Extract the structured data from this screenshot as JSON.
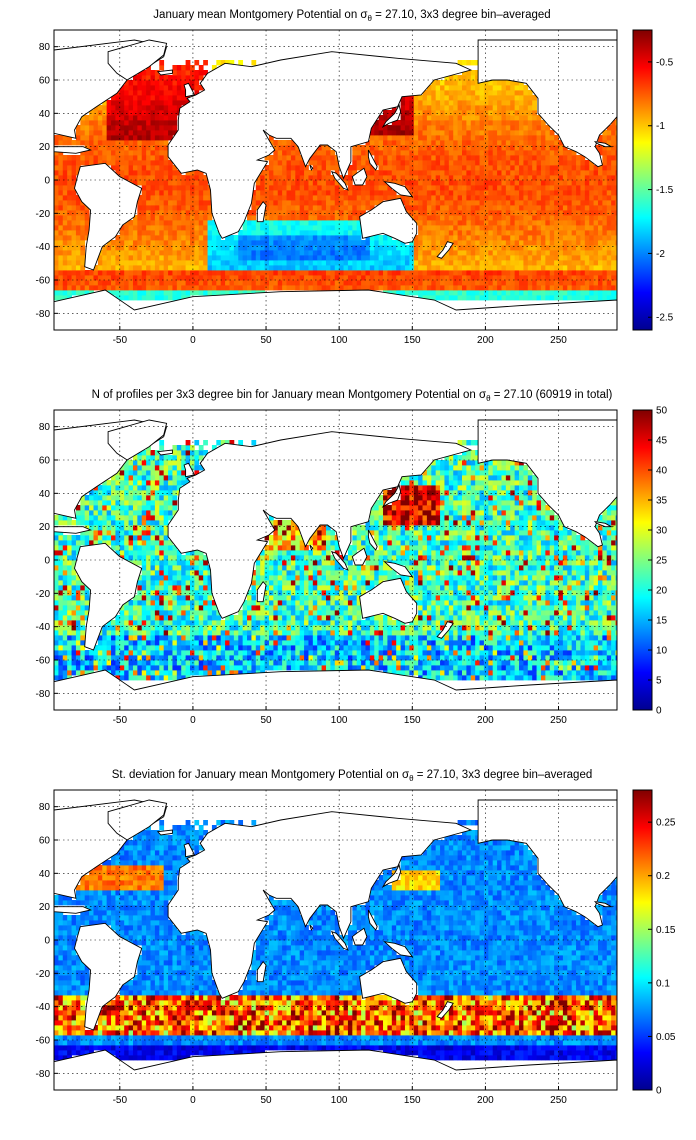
{
  "chart_data": [
    {
      "type": "heatmap",
      "title_parts": [
        "January mean Montgomery Potential on ",
        "σ",
        "θ",
        " = 27.10, 3x3 degree bin–averaged"
      ],
      "x_ticks": [
        "-50",
        "0",
        "50",
        "100",
        "150",
        "200",
        "250"
      ],
      "y_ticks": [
        "80",
        "60",
        "40",
        "20",
        "0",
        "-20",
        "-40",
        "-60",
        "-80"
      ],
      "xlim": [
        -95,
        290
      ],
      "ylim": [
        -90,
        90
      ],
      "colorbar_ticks": [
        "-0.5",
        "-1",
        "-1.5",
        "-2",
        "-2.5"
      ],
      "colorbar_range": [
        -2.6,
        -0.25
      ],
      "colormap": "jet",
      "grid": "dotted"
    },
    {
      "type": "heatmap",
      "title_parts": [
        "N of profiles per 3x3 degree bin for January mean Montgomery Potential on ",
        "σ",
        "θ",
        " = 27.10 (60919 in total)"
      ],
      "x_ticks": [
        "-50",
        "0",
        "50",
        "100",
        "150",
        "200",
        "250"
      ],
      "y_ticks": [
        "80",
        "60",
        "40",
        "20",
        "0",
        "-20",
        "-40",
        "-60",
        "-80"
      ],
      "xlim": [
        -95,
        290
      ],
      "ylim": [
        -90,
        90
      ],
      "colorbar_ticks": [
        "50",
        "45",
        "40",
        "35",
        "30",
        "25",
        "20",
        "15",
        "10",
        "5",
        "0"
      ],
      "colorbar_range": [
        0,
        50
      ],
      "colormap": "jet",
      "grid": "dotted"
    },
    {
      "type": "heatmap",
      "title_parts": [
        "St. deviation for January mean Montgomery Potential on ",
        "σ",
        "θ",
        " = 27.10, 3x3 degree bin–averaged"
      ],
      "x_ticks": [
        "-50",
        "0",
        "50",
        "100",
        "150",
        "200",
        "250"
      ],
      "y_ticks": [
        "80",
        "60",
        "40",
        "20",
        "0",
        "-20",
        "-40",
        "-60",
        "-80"
      ],
      "xlim": [
        -95,
        290
      ],
      "ylim": [
        -90,
        90
      ],
      "colorbar_ticks": [
        "0.25",
        "0.2",
        "0.15",
        "0.1",
        "0.05",
        "0"
      ],
      "colorbar_range": [
        0,
        0.28
      ],
      "colormap": "jet",
      "grid": "dotted"
    }
  ]
}
